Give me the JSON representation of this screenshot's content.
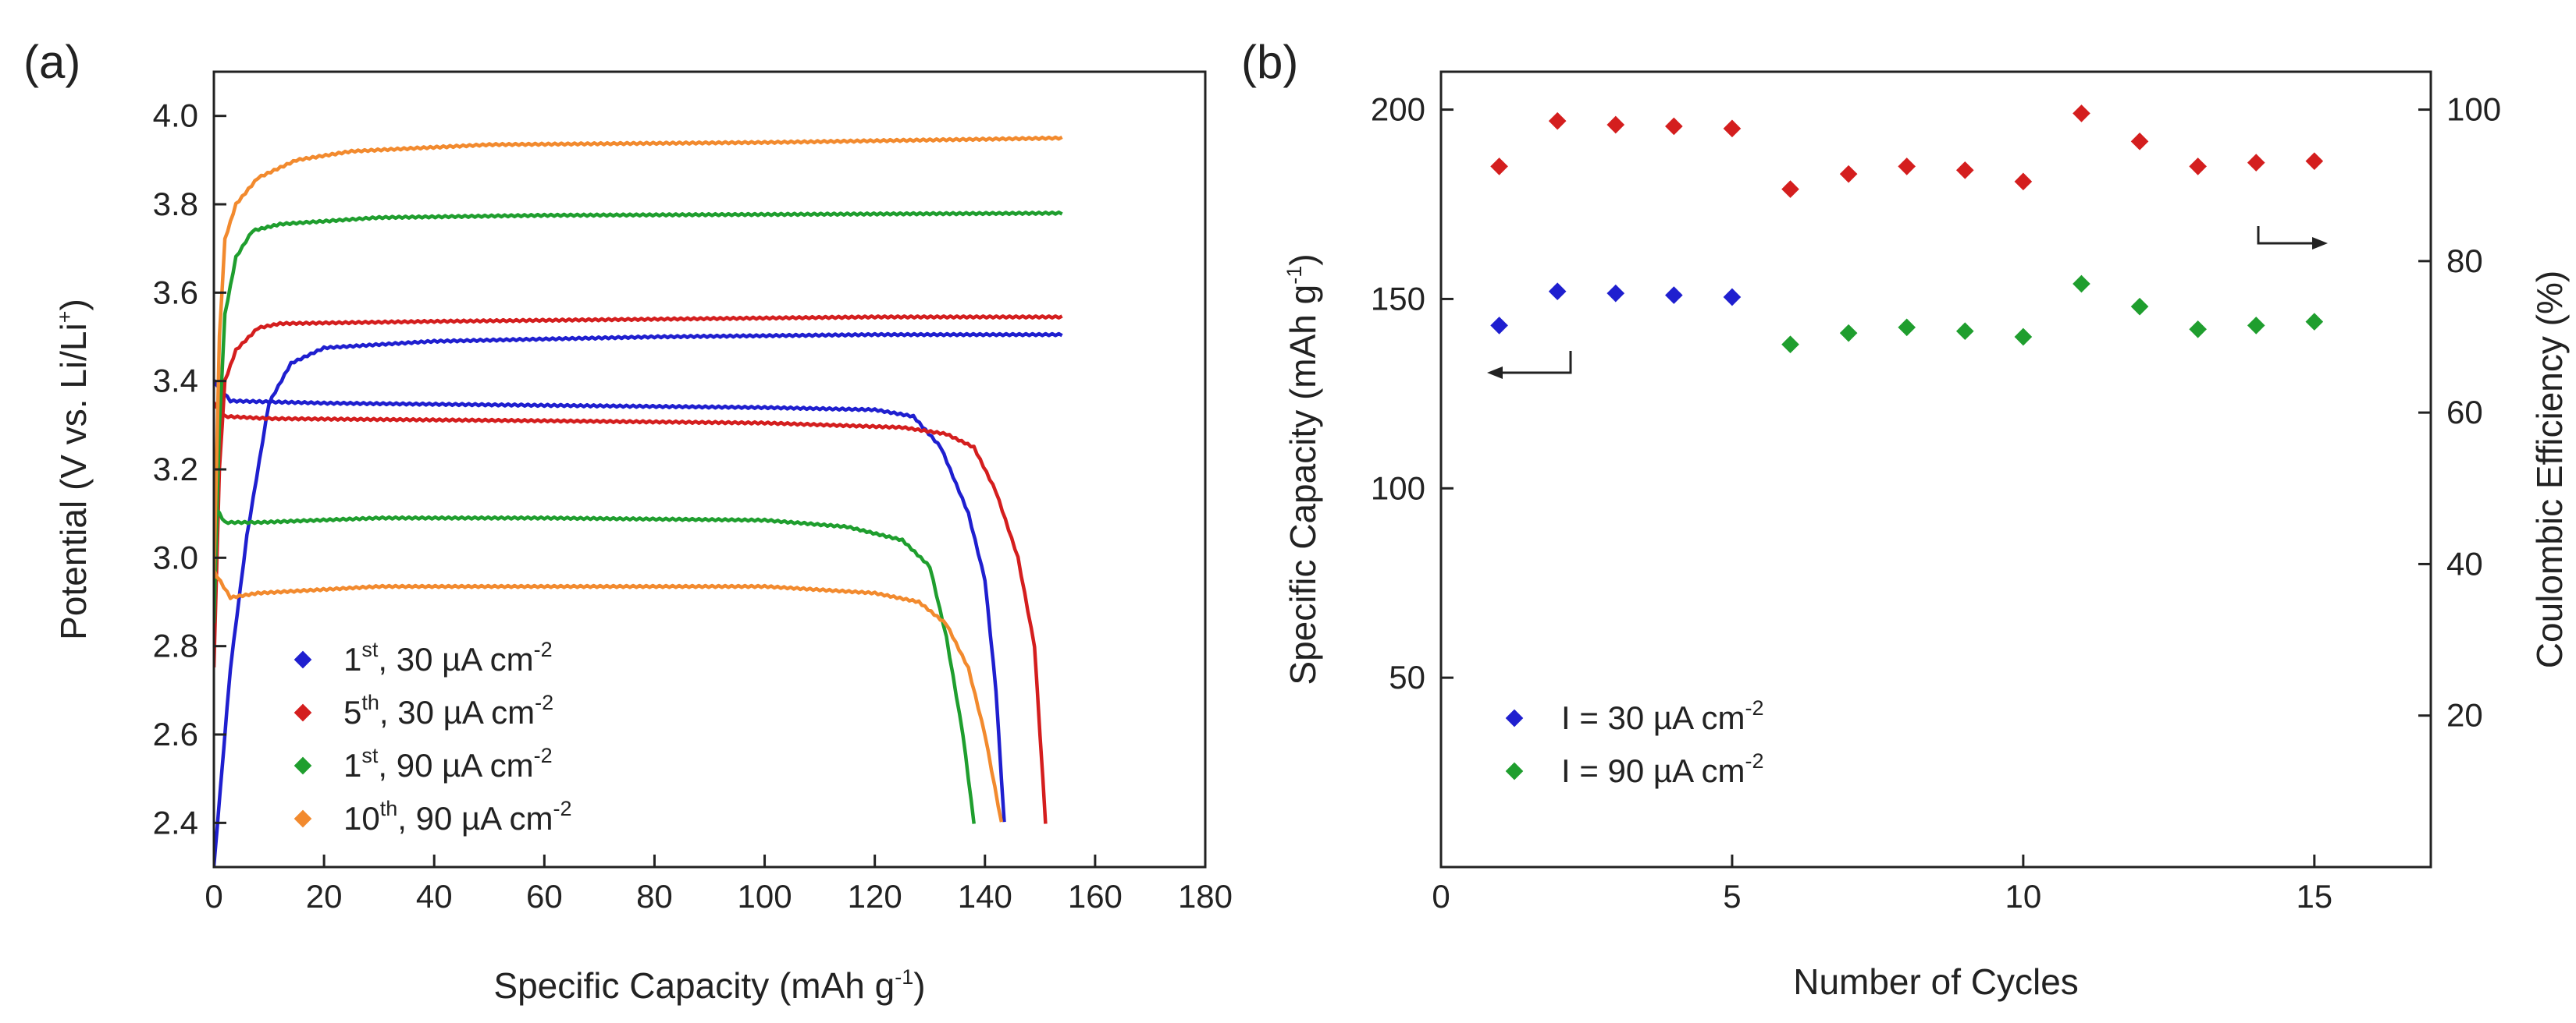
{
  "chart_data": [
    {
      "panel": "(a)",
      "type": "line",
      "xlabel": "Specific Capacity (mAh g",
      "xlabel_sup": "-1",
      "xlabel_tail": ")",
      "ylabel": "Potential (V vs. Li/Li",
      "ylabel_sup": "+",
      "ylabel_tail": ")",
      "xlim": [
        0,
        180
      ],
      "ylim": [
        2.3,
        4.1
      ],
      "xticks": [
        "0",
        "20",
        "40",
        "60",
        "80",
        "100",
        "120",
        "140",
        "160",
        "180"
      ],
      "yticks": [
        "2.4",
        "2.6",
        "2.8",
        "3.0",
        "3.2",
        "3.4",
        "3.6",
        "3.8",
        "4.0"
      ],
      "legend_position": "bottom-left",
      "series": [
        {
          "name": "1st, 30 µA cm-2",
          "legend": {
            "main": "1",
            "sup": "st",
            "tail": ", 30 µA cm",
            "sup2": "-2"
          },
          "color": "#1f1fcf",
          "charge": [
            [
              0,
              2.3
            ],
            [
              3,
              2.75
            ],
            [
              6,
              3.05
            ],
            [
              10,
              3.35
            ],
            [
              14,
              3.44
            ],
            [
              20,
              3.475
            ],
            [
              40,
              3.49
            ],
            [
              80,
              3.5
            ],
            [
              120,
              3.505
            ],
            [
              154,
              3.505
            ]
          ],
          "discharge": [
            [
              0,
              3.4
            ],
            [
              3,
              3.355
            ],
            [
              20,
              3.35
            ],
            [
              60,
              3.345
            ],
            [
              100,
              3.34
            ],
            [
              120,
              3.335
            ],
            [
              127,
              3.32
            ],
            [
              132,
              3.25
            ],
            [
              137,
              3.1
            ],
            [
              140,
              2.95
            ],
            [
              142,
              2.7
            ],
            [
              143.5,
              2.4
            ]
          ]
        },
        {
          "name": "5th, 30 µA cm-2",
          "legend": {
            "main": "5",
            "sup": "th",
            "tail": ", 30 µA cm",
            "sup2": "-2"
          },
          "color": "#d41e1e",
          "charge": [
            [
              0,
              2.75
            ],
            [
              1,
              3.2
            ],
            [
              2,
              3.4
            ],
            [
              4,
              3.47
            ],
            [
              8,
              3.52
            ],
            [
              12,
              3.53
            ],
            [
              40,
              3.535
            ],
            [
              80,
              3.54
            ],
            [
              120,
              3.545
            ],
            [
              154,
              3.545
            ]
          ],
          "discharge": [
            [
              0,
              3.35
            ],
            [
              2,
              3.32
            ],
            [
              10,
              3.315
            ],
            [
              60,
              3.31
            ],
            [
              100,
              3.305
            ],
            [
              125,
              3.295
            ],
            [
              133,
              3.28
            ],
            [
              138,
              3.25
            ],
            [
              142,
              3.15
            ],
            [
              146,
              3.0
            ],
            [
              149,
              2.8
            ],
            [
              151,
              2.4
            ]
          ]
        },
        {
          "name": "1st, 90 µA cm-2",
          "legend": {
            "main": "1",
            "sup": "st",
            "tail": ", 90 µA cm",
            "sup2": "-2"
          },
          "color": "#1f9e2e",
          "charge": [
            [
              0,
              2.85
            ],
            [
              1,
              3.3
            ],
            [
              2,
              3.55
            ],
            [
              4,
              3.68
            ],
            [
              7,
              3.74
            ],
            [
              12,
              3.755
            ],
            [
              30,
              3.77
            ],
            [
              60,
              3.775
            ],
            [
              100,
              3.777
            ],
            [
              154,
              3.78
            ]
          ],
          "discharge": [
            [
              0,
              3.12
            ],
            [
              2,
              3.08
            ],
            [
              8,
              3.08
            ],
            [
              30,
              3.09
            ],
            [
              60,
              3.09
            ],
            [
              100,
              3.085
            ],
            [
              115,
              3.07
            ],
            [
              125,
              3.04
            ],
            [
              130,
              2.98
            ],
            [
              133,
              2.82
            ],
            [
              136,
              2.6
            ],
            [
              138,
              2.4
            ]
          ]
        },
        {
          "name": "10th, 90 µA cm-2",
          "legend": {
            "main": "10",
            "sup": "th",
            "tail": ", 90 µA cm",
            "sup2": "-2"
          },
          "color": "#f28a2e",
          "charge": [
            [
              0,
              2.95
            ],
            [
              1,
              3.5
            ],
            [
              2,
              3.72
            ],
            [
              4,
              3.8
            ],
            [
              8,
              3.86
            ],
            [
              15,
              3.9
            ],
            [
              25,
              3.92
            ],
            [
              50,
              3.935
            ],
            [
              100,
              3.94
            ],
            [
              154,
              3.95
            ]
          ],
          "discharge": [
            [
              0,
              2.97
            ],
            [
              3,
              2.91
            ],
            [
              8,
              2.92
            ],
            [
              30,
              2.935
            ],
            [
              60,
              2.935
            ],
            [
              100,
              2.935
            ],
            [
              120,
              2.92
            ],
            [
              128,
              2.9
            ],
            [
              133,
              2.85
            ],
            [
              137,
              2.75
            ],
            [
              140,
              2.6
            ],
            [
              143,
              2.4
            ]
          ]
        }
      ]
    },
    {
      "panel": "(b)",
      "type": "scatter",
      "xlabel": "Number of Cycles",
      "ylabel_left": "Specific Capacity (mAh g",
      "ylabel_left_sup": "-1",
      "ylabel_left_tail": ")",
      "ylabel_right": "Coulombic Efficiency (%)",
      "xlim": [
        0,
        17
      ],
      "ylim_left": [
        0,
        210
      ],
      "ylim_right": [
        0,
        105
      ],
      "xticks": [
        "0",
        "5",
        "10",
        "15"
      ],
      "yticks_left": [
        "50",
        "100",
        "150",
        "200"
      ],
      "yticks_right": [
        "20",
        "40",
        "60",
        "80",
        "100"
      ],
      "legend_position": "bottom-left",
      "legend": [
        {
          "label": "I = 30 µA cm",
          "sup": "-2",
          "color": "#1f1fcf"
        },
        {
          "label": "I = 90 µA cm",
          "sup": "-2",
          "color": "#1f9e2e"
        }
      ],
      "capacity_30uA": {
        "cycles": [
          1,
          2,
          3,
          4,
          5
        ],
        "values": [
          143,
          152,
          151.5,
          151,
          150.5
        ],
        "color": "#1f1fcf"
      },
      "capacity_90uA": {
        "cycles": [
          6,
          7,
          8,
          9,
          10,
          11,
          12,
          13,
          14,
          15
        ],
        "values": [
          138,
          141,
          142.5,
          141.5,
          140,
          154,
          148,
          142,
          143,
          144
        ],
        "color": "#1f9e2e"
      },
      "coulombic_efficiency": {
        "cycles": [
          1,
          2,
          3,
          4,
          5,
          6,
          7,
          8,
          9,
          10,
          11,
          12,
          13,
          14,
          15
        ],
        "values": [
          92.5,
          98.5,
          98,
          97.8,
          97.5,
          89.5,
          91.5,
          92.5,
          92,
          90.5,
          99.5,
          95.8,
          92.5,
          93,
          93.2
        ],
        "color": "#d41e1e"
      }
    }
  ]
}
